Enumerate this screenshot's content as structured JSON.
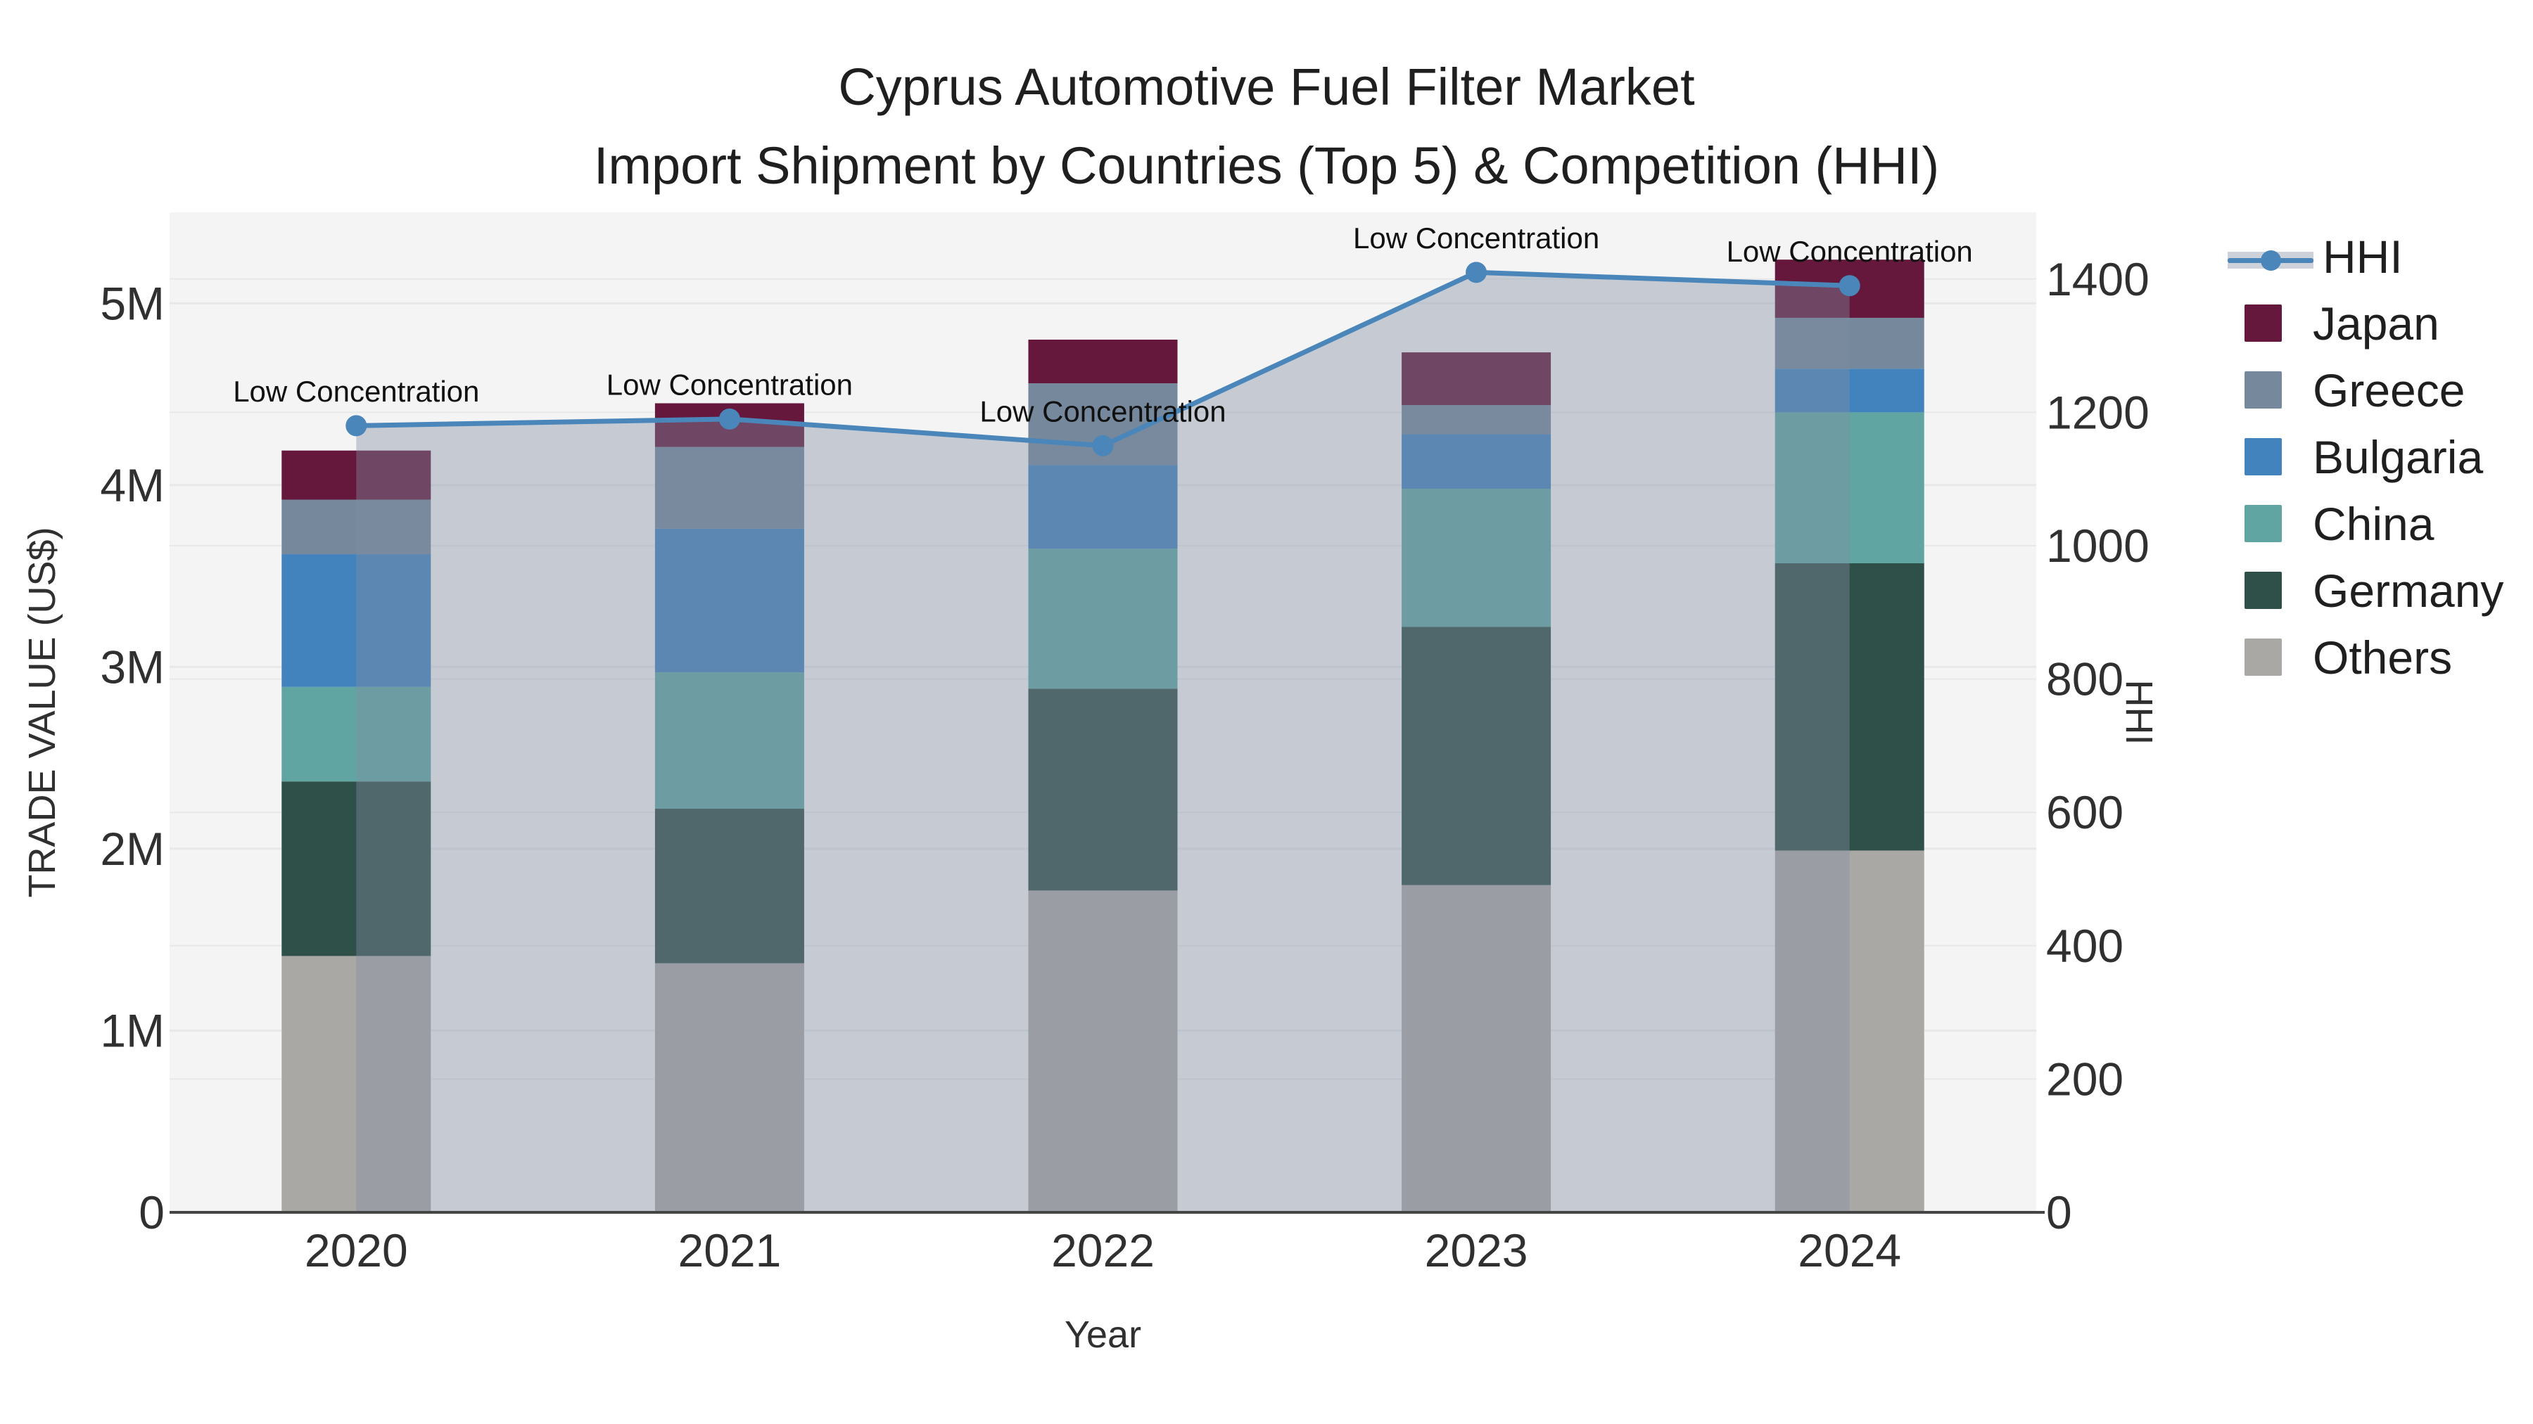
{
  "title": {
    "line1": "Cyprus Automotive Fuel Filter Market",
    "line2": "Import Shipment by Countries (Top 5) & Competition (HHI)"
  },
  "chart_data": {
    "type": "bar+line",
    "title": "Cyprus Automotive Fuel Filter Market Import Shipment by Countries (Top 5) & Competition (HHI)",
    "xlabel": "Year",
    "ylabel_left": "TRADE VALUE (US$)",
    "ylabel_right": "HHI",
    "categories": [
      "2020",
      "2021",
      "2022",
      "2023",
      "2024"
    ],
    "stack_order_bottom_to_top": [
      "Others",
      "Germany",
      "China",
      "Bulgaria",
      "Greece",
      "Japan"
    ],
    "series": [
      {
        "name": "Others",
        "color": "#aaa8a5",
        "values_m_usd": [
          1.41,
          1.37,
          1.77,
          1.8,
          1.99
        ]
      },
      {
        "name": "Germany",
        "color": "#2f4f49",
        "values_m_usd": [
          0.96,
          0.85,
          1.11,
          1.42,
          1.58
        ]
      },
      {
        "name": "China",
        "color": "#60a5a2",
        "values_m_usd": [
          0.52,
          0.75,
          0.77,
          0.76,
          0.83
        ]
      },
      {
        "name": "Bulgaria",
        "color": "#4282bd",
        "values_m_usd": [
          0.73,
          0.79,
          0.46,
          0.3,
          0.24
        ]
      },
      {
        "name": "Greece",
        "color": "#76889b",
        "values_m_usd": [
          0.3,
          0.45,
          0.45,
          0.16,
          0.28
        ]
      },
      {
        "name": "Japan",
        "color": "#65173c",
        "values_m_usd": [
          0.27,
          0.24,
          0.24,
          0.29,
          0.32
        ]
      }
    ],
    "totals_m_usd": [
      4.19,
      4.45,
      4.8,
      4.73,
      5.24
    ],
    "line": {
      "name": "HHI",
      "color": "#4b86ba",
      "fill_color": "rgba(130,143,163,0.40)",
      "values": [
        1180,
        1190,
        1150,
        1410,
        1390
      ]
    },
    "annotations": [
      {
        "category": "2020",
        "text": "Low Concentration"
      },
      {
        "category": "2021",
        "text": "Low Concentration"
      },
      {
        "category": "2022",
        "text": "Low Concentration"
      },
      {
        "category": "2023",
        "text": "Low Concentration"
      },
      {
        "category": "2024",
        "text": "Low Concentration"
      }
    ],
    "axis_left": {
      "ticks": [
        "0",
        "1M",
        "2M",
        "3M",
        "4M",
        "5M"
      ],
      "tick_values_m": [
        0,
        1,
        2,
        3,
        4,
        5
      ],
      "range_m": [
        0,
        5.5
      ]
    },
    "axis_right": {
      "ticks": [
        "0",
        "200",
        "400",
        "600",
        "800",
        "1000",
        "1200",
        "1400"
      ],
      "tick_values": [
        0,
        200,
        400,
        600,
        800,
        1000,
        1200,
        1400
      ],
      "range": [
        0,
        1500
      ]
    },
    "legend_position": "right",
    "grid": true
  },
  "legend": {
    "items": [
      {
        "id": "hhi",
        "label": "HHI",
        "type": "line",
        "color": "#4b86ba"
      },
      {
        "id": "japan",
        "label": "Japan",
        "type": "swatch",
        "color": "#65173c"
      },
      {
        "id": "greece",
        "label": "Greece",
        "type": "swatch",
        "color": "#76889b"
      },
      {
        "id": "bulgaria",
        "label": "Bulgaria",
        "type": "swatch",
        "color": "#4282bd"
      },
      {
        "id": "china",
        "label": "China",
        "type": "swatch",
        "color": "#60a5a2"
      },
      {
        "id": "germany",
        "label": "Germany",
        "type": "swatch",
        "color": "#2f4f49"
      },
      {
        "id": "others",
        "label": "Others",
        "type": "swatch",
        "color": "#aaa8a5"
      }
    ]
  },
  "colors": {
    "plot_background": "#f4f4f4",
    "gridline": "#e7e8ea",
    "axis_line": "#454545",
    "tick_text": "#303030",
    "title_text": "#1f1f1f"
  }
}
